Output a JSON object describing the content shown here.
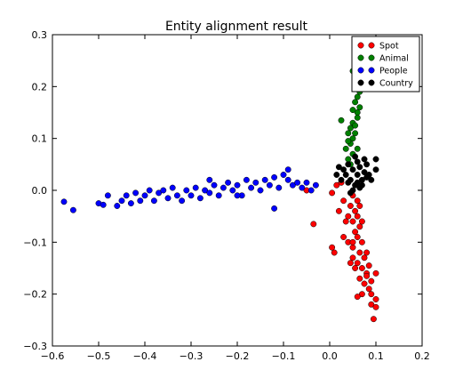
{
  "chart_data": {
    "type": "scatter",
    "title": "Entity alignment result",
    "xlabel": "",
    "ylabel": "",
    "xlim": [
      -0.6,
      0.2
    ],
    "ylim": [
      -0.3,
      0.3
    ],
    "xticks": [
      -0.6,
      -0.5,
      -0.4,
      -0.3,
      -0.2,
      -0.1,
      0.0,
      0.1,
      0.2
    ],
    "yticks": [
      -0.3,
      -0.2,
      -0.1,
      0.0,
      0.1,
      0.2,
      0.3
    ],
    "xtick_labels": [
      "−0.6",
      "−0.5",
      "−0.4",
      "−0.3",
      "−0.2",
      "−0.1",
      "0.0",
      "0.1",
      "0.2"
    ],
    "ytick_labels": [
      "−0.3",
      "−0.2",
      "−0.1",
      "0.0",
      "0.1",
      "0.2",
      "0.3"
    ],
    "grid": false,
    "legend_position": "top-right",
    "series": [
      {
        "name": "Spot",
        "color": "#ff0000",
        "points": [
          [
            0.05,
            -0.01
          ],
          [
            0.06,
            -0.02
          ],
          [
            0.045,
            -0.03
          ],
          [
            0.055,
            -0.04
          ],
          [
            0.06,
            -0.05
          ],
          [
            0.05,
            -0.06
          ],
          [
            0.065,
            -0.07
          ],
          [
            0.055,
            -0.08
          ],
          [
            0.06,
            -0.09
          ],
          [
            0.07,
            -0.1
          ],
          [
            0.05,
            -0.11
          ],
          [
            0.065,
            -0.12
          ],
          [
            0.075,
            -0.13
          ],
          [
            0.06,
            -0.14
          ],
          [
            0.07,
            -0.15
          ],
          [
            0.08,
            -0.16
          ],
          [
            0.065,
            -0.17
          ],
          [
            0.075,
            -0.18
          ],
          [
            0.085,
            -0.19
          ],
          [
            0.09,
            -0.2
          ],
          [
            0.1,
            -0.16
          ],
          [
            0.07,
            -0.2
          ],
          [
            0.1,
            -0.21
          ],
          [
            0.09,
            -0.22
          ],
          [
            0.06,
            -0.205
          ],
          [
            0.095,
            -0.248
          ],
          [
            0.1,
            -0.225
          ],
          [
            0.08,
            -0.165
          ],
          [
            0.04,
            -0.05
          ],
          [
            0.03,
            -0.02
          ],
          [
            0.02,
            -0.04
          ],
          [
            0.04,
            -0.1
          ],
          [
            0.03,
            -0.09
          ],
          [
            0.05,
            -0.13
          ],
          [
            0.045,
            -0.14
          ],
          [
            0.01,
            -0.12
          ],
          [
            0.005,
            -0.11
          ],
          [
            -0.035,
            -0.065
          ],
          [
            -0.05,
            0.0
          ],
          [
            0.005,
            -0.005
          ],
          [
            0.025,
            0.015
          ],
          [
            0.015,
            0.01
          ],
          [
            0.035,
            -0.06
          ],
          [
            0.09,
            -0.175
          ],
          [
            0.085,
            -0.145
          ],
          [
            0.065,
            -0.03
          ],
          [
            0.07,
            -0.06
          ],
          [
            0.05,
            -0.1
          ],
          [
            0.055,
            -0.15
          ],
          [
            0.08,
            -0.12
          ]
        ]
      },
      {
        "name": "Animal",
        "color": "#008000",
        "points": [
          [
            0.05,
            0.23
          ],
          [
            0.06,
            0.21
          ],
          [
            0.065,
            0.19
          ],
          [
            0.055,
            0.17
          ],
          [
            0.06,
            0.15
          ],
          [
            0.05,
            0.13
          ],
          [
            0.055,
            0.11
          ],
          [
            0.045,
            0.09
          ],
          [
            0.05,
            0.07
          ],
          [
            0.04,
            0.06
          ],
          [
            0.035,
            0.08
          ],
          [
            0.045,
            0.12
          ],
          [
            0.025,
            0.135
          ],
          [
            0.06,
            0.14
          ],
          [
            0.065,
            0.16
          ],
          [
            0.05,
            0.1
          ],
          [
            0.04,
            0.11
          ],
          [
            0.055,
            0.2
          ],
          [
            0.06,
            0.18
          ],
          [
            0.045,
            0.05
          ],
          [
            0.05,
            0.155
          ],
          [
            0.055,
            0.125
          ],
          [
            0.04,
            0.095
          ],
          [
            0.06,
            0.08
          ]
        ]
      },
      {
        "name": "People",
        "color": "#0000ff",
        "points": [
          [
            -0.575,
            -0.022
          ],
          [
            -0.555,
            -0.038
          ],
          [
            -0.5,
            -0.025
          ],
          [
            -0.49,
            -0.028
          ],
          [
            -0.48,
            -0.01
          ],
          [
            -0.46,
            -0.03
          ],
          [
            -0.45,
            -0.02
          ],
          [
            -0.44,
            -0.01
          ],
          [
            -0.43,
            -0.025
          ],
          [
            -0.42,
            -0.005
          ],
          [
            -0.41,
            -0.02
          ],
          [
            -0.4,
            -0.01
          ],
          [
            -0.39,
            0.0
          ],
          [
            -0.38,
            -0.02
          ],
          [
            -0.37,
            -0.005
          ],
          [
            -0.36,
            0.0
          ],
          [
            -0.35,
            -0.015
          ],
          [
            -0.34,
            0.005
          ],
          [
            -0.33,
            -0.01
          ],
          [
            -0.32,
            -0.02
          ],
          [
            -0.31,
            0.0
          ],
          [
            -0.3,
            -0.01
          ],
          [
            -0.29,
            0.005
          ],
          [
            -0.28,
            -0.015
          ],
          [
            -0.27,
            0.0
          ],
          [
            -0.26,
            -0.005
          ],
          [
            -0.25,
            0.01
          ],
          [
            -0.24,
            -0.01
          ],
          [
            -0.23,
            0.005
          ],
          [
            -0.22,
            0.015
          ],
          [
            -0.21,
            0.0
          ],
          [
            -0.2,
            0.01
          ],
          [
            -0.19,
            -0.01
          ],
          [
            -0.18,
            0.02
          ],
          [
            -0.17,
            0.005
          ],
          [
            -0.16,
            0.015
          ],
          [
            -0.15,
            0.0
          ],
          [
            -0.14,
            0.02
          ],
          [
            -0.13,
            0.01
          ],
          [
            -0.12,
            0.025
          ],
          [
            -0.11,
            0.005
          ],
          [
            -0.1,
            0.03
          ],
          [
            -0.09,
            0.02
          ],
          [
            -0.08,
            0.01
          ],
          [
            -0.07,
            0.015
          ],
          [
            -0.06,
            0.005
          ],
          [
            -0.05,
            0.015
          ],
          [
            -0.04,
            0.0
          ],
          [
            -0.03,
            0.01
          ],
          [
            -0.09,
            0.04
          ],
          [
            -0.12,
            -0.035
          ],
          [
            -0.2,
            -0.01
          ],
          [
            -0.26,
            0.02
          ]
        ]
      },
      {
        "name": "Country",
        "color": "#000000",
        "points": [
          [
            0.04,
            0.05
          ],
          [
            0.05,
            0.04
          ],
          [
            0.06,
            0.03
          ],
          [
            0.07,
            0.02
          ],
          [
            0.055,
            0.01
          ],
          [
            0.045,
            0.02
          ],
          [
            0.035,
            0.03
          ],
          [
            0.065,
            0.045
          ],
          [
            0.075,
            0.035
          ],
          [
            0.08,
            0.025
          ],
          [
            0.05,
            0.0
          ],
          [
            0.06,
            0.055
          ],
          [
            0.04,
            0.015
          ],
          [
            0.07,
            0.01
          ],
          [
            0.03,
            0.04
          ],
          [
            0.1,
            0.06
          ],
          [
            0.1,
            0.04
          ],
          [
            0.085,
            0.03
          ],
          [
            0.02,
            0.045
          ],
          [
            0.015,
            0.03
          ],
          [
            0.055,
            0.065
          ],
          [
            0.045,
            -0.005
          ],
          [
            0.065,
            0.005
          ],
          [
            0.08,
            0.05
          ],
          [
            0.09,
            0.02
          ],
          [
            0.025,
            0.02
          ],
          [
            0.075,
            0.06
          ],
          [
            0.06,
            0.015
          ]
        ]
      }
    ]
  }
}
